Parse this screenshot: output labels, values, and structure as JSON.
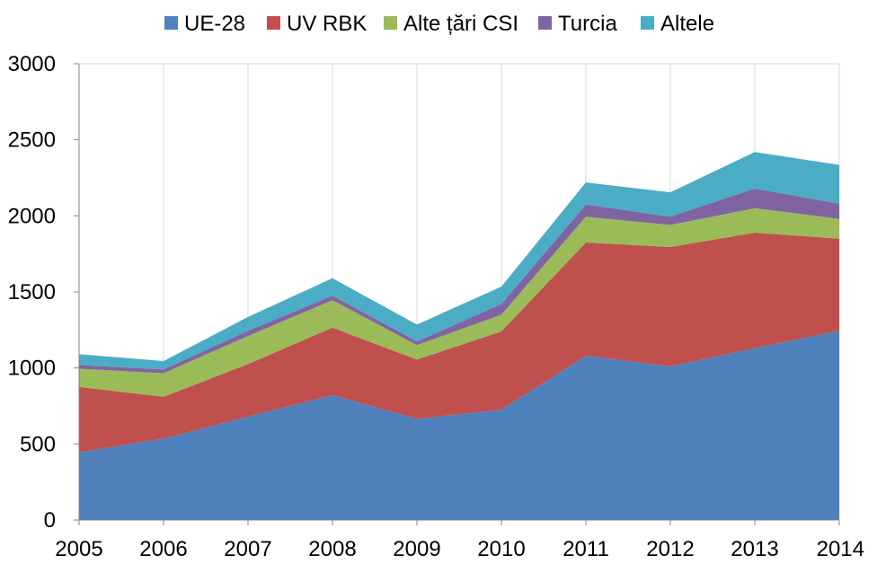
{
  "chart_data": {
    "type": "area",
    "stacked": true,
    "title": "",
    "xlabel": "",
    "ylabel": "",
    "categories": [
      "2005",
      "2006",
      "2007",
      "2008",
      "2009",
      "2010",
      "2011",
      "2012",
      "2013",
      "2014"
    ],
    "ylim": [
      0,
      3000
    ],
    "yticks": [
      "0",
      "500",
      "1000",
      "1500",
      "2000",
      "2500",
      "3000"
    ],
    "grid": "vertical",
    "legend": "top",
    "series": [
      {
        "name": "UE-28",
        "color": "#4F81BD",
        "values": [
          445,
          535,
          680,
          820,
          665,
          725,
          1080,
          1010,
          1130,
          1245
        ]
      },
      {
        "name": "UV RBK",
        "color": "#C0504D",
        "values": [
          430,
          275,
          345,
          445,
          390,
          515,
          745,
          785,
          760,
          605
        ]
      },
      {
        "name": "Alte țări CSI",
        "color": "#9BBB59",
        "values": [
          120,
          155,
          185,
          180,
          95,
          110,
          170,
          145,
          160,
          130
        ]
      },
      {
        "name": "Turcia",
        "color": "#8064A2",
        "values": [
          25,
          25,
          35,
          30,
          25,
          70,
          80,
          55,
          130,
          100
        ]
      },
      {
        "name": "Altele",
        "color": "#4BACC6",
        "values": [
          70,
          55,
          90,
          115,
          110,
          115,
          145,
          160,
          240,
          255
        ]
      }
    ]
  }
}
